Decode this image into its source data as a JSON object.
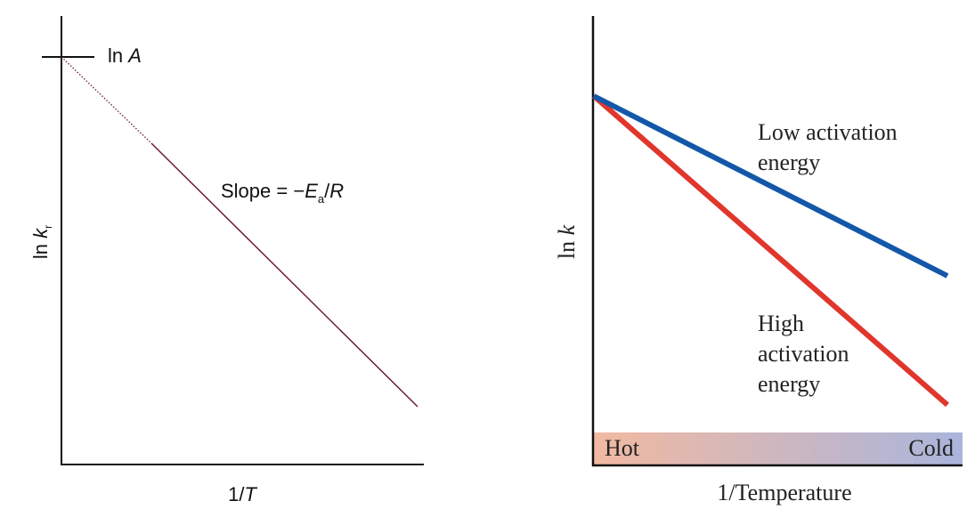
{
  "left": {
    "intercept_label": [
      "ln ",
      "A"
    ],
    "slope_label": [
      "Slope = −",
      "E",
      "a",
      "/",
      "R"
    ],
    "y_label": [
      "ln ",
      "k",
      "r"
    ],
    "x_label": [
      "1/",
      "T"
    ]
  },
  "right": {
    "low_label": [
      "Low activation",
      "energy"
    ],
    "high_label": [
      "High",
      "activation",
      "energy"
    ],
    "hot": "Hot",
    "cold": "Cold",
    "y_label": [
      "ln ",
      "k"
    ],
    "x_label": "1/Temperature"
  }
}
